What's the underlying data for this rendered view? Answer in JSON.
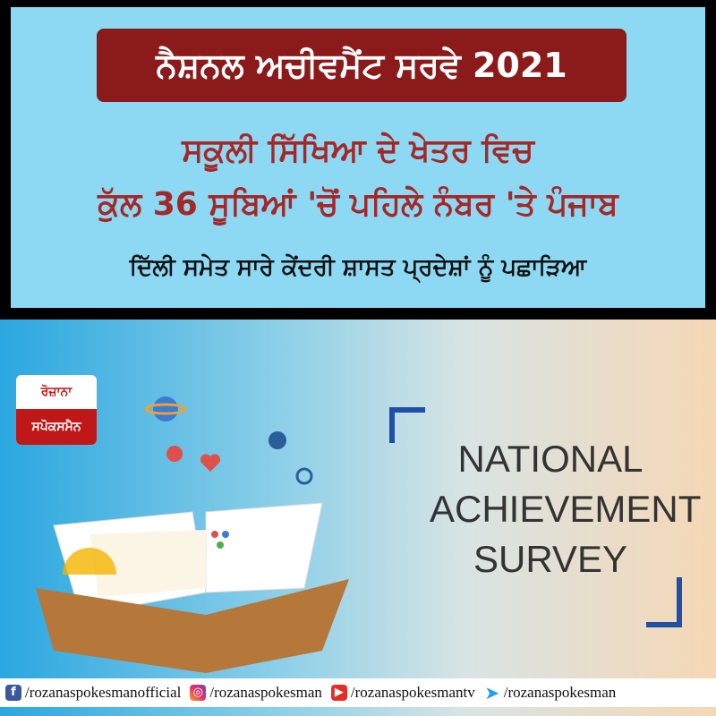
{
  "header": {
    "title": "ਨੈਸ਼ਨਲ ਅਚੀਵਮੈਂਟ ਸਰਵੇ 2021",
    "headline_line1": "ਸਕੂਲੀ ਸਿੱਖਿਆ ਦੇ ਖੇਤਰ ਵਿਚ",
    "headline_line2": "ਕੁੱਲ 36 ਸੂਬਿਆਂ 'ਚੋਂ ਪਹਿਲੇ ਨੰਬਰ 'ਤੇ ਪੰਜਾਬ",
    "subheadline": "ਦਿੱਲੀ ਸਮੇਤ ਸਾਰੇ ਕੇਂਦਰੀ ਸ਼ਾਸਤ ਪ੍ਰਦੇਸ਼ਾਂ ਨੂੰ ਪਛਾੜਿਆ",
    "title_bg": "#8b1a1a",
    "panel_bg": "#8dd8f2"
  },
  "logo": {
    "top": "ਰੋਜ਼ਾਨਾ",
    "bottom": "ਸਪੋਕਸਮੈਨ",
    "color": "#c01818"
  },
  "illustration": {
    "lines": [
      "NATIONAL",
      "ACHIEVEMENT",
      "SURVEY"
    ],
    "bracket_color": "#1f4fa6"
  },
  "footer": [
    {
      "icon": "facebook-icon",
      "glyph": "f",
      "handle": "/rozanaspokesmanofficial"
    },
    {
      "icon": "instagram-icon",
      "glyph": "◎",
      "handle": "/rozanaspokesman"
    },
    {
      "icon": "youtube-icon",
      "glyph": "▶",
      "handle": "/rozanaspokesmantv"
    },
    {
      "icon": "twitter-icon",
      "glyph": "🐦",
      "handle": "/rozanaspokesman"
    }
  ]
}
